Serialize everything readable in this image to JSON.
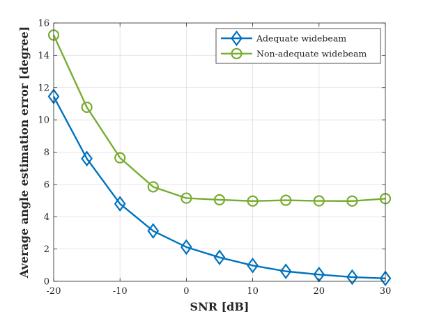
{
  "chart_data": {
    "type": "line",
    "title": "",
    "xlabel": "SNR [dB]",
    "ylabel": "Average angle estimation error [degree]",
    "x": [
      -20,
      -15,
      -10,
      -5,
      0,
      5,
      10,
      15,
      20,
      25,
      30
    ],
    "xlim": [
      -20,
      30
    ],
    "ylim": [
      0,
      16
    ],
    "xticks": [
      -20,
      -10,
      0,
      10,
      20,
      30
    ],
    "yticks": [
      0,
      2,
      4,
      6,
      8,
      10,
      12,
      14,
      16
    ],
    "grid": true,
    "legend_position": "top-right",
    "series": [
      {
        "name": "Adequate widebeam",
        "color": "#0072BD",
        "marker": "diamond",
        "values": [
          11.45,
          7.6,
          4.8,
          3.12,
          2.12,
          1.48,
          0.98,
          0.62,
          0.42,
          0.26,
          0.18
        ]
      },
      {
        "name": "Non-adequate widebeam",
        "color": "#77AC30",
        "marker": "circle",
        "values": [
          15.25,
          10.78,
          7.65,
          5.85,
          5.15,
          5.05,
          4.97,
          5.02,
          4.98,
          4.97,
          5.12
        ]
      }
    ]
  }
}
